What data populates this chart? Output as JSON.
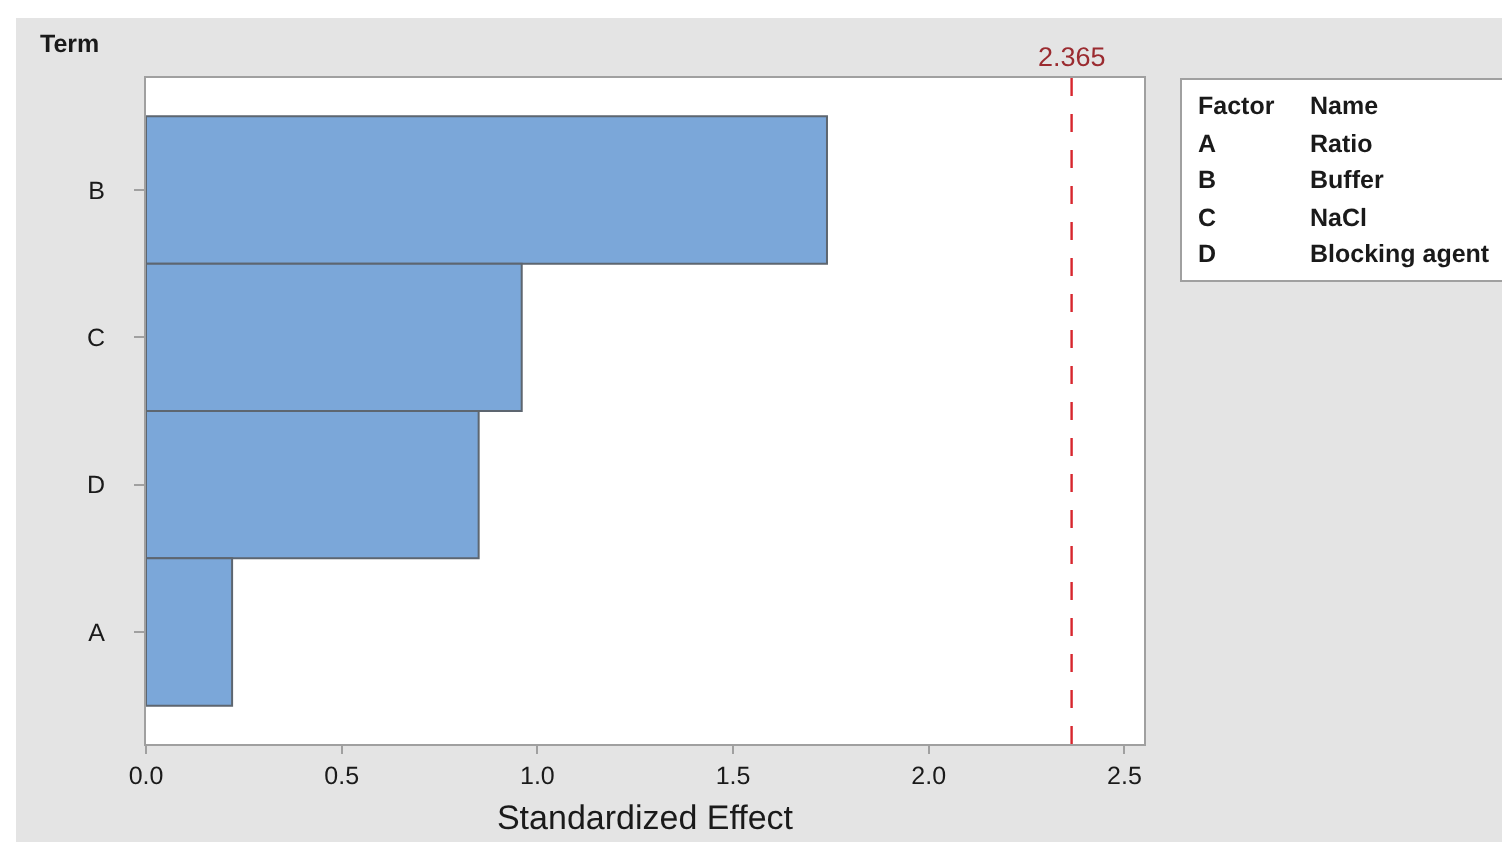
{
  "chart_data": {
    "type": "bar",
    "orientation": "horizontal",
    "categories": [
      "B",
      "C",
      "D",
      "A"
    ],
    "values": [
      1.74,
      0.96,
      0.85,
      0.22
    ],
    "color": "#7ba7d9",
    "xlabel": "Standardized Effect",
    "ylabel": "Term",
    "xlim": [
      0,
      2.55
    ],
    "xticks": [
      {
        "value": 0,
        "label": "0.0"
      },
      0.5,
      {
        "value": 1,
        "label": "1.0"
      },
      1.5,
      {
        "value": 2,
        "label": "2.0"
      },
      2.5
    ],
    "ref_lines": [
      {
        "axis": "x",
        "value": 2.365,
        "label": "2.365",
        "color": "#d7262e",
        "line_style": "dashed"
      }
    ],
    "annotations": [
      "Factor",
      "Name",
      "A",
      "Ratio",
      "B",
      "Buffer",
      "C",
      "NaCl",
      "D",
      "Blocking agent"
    ]
  }
}
